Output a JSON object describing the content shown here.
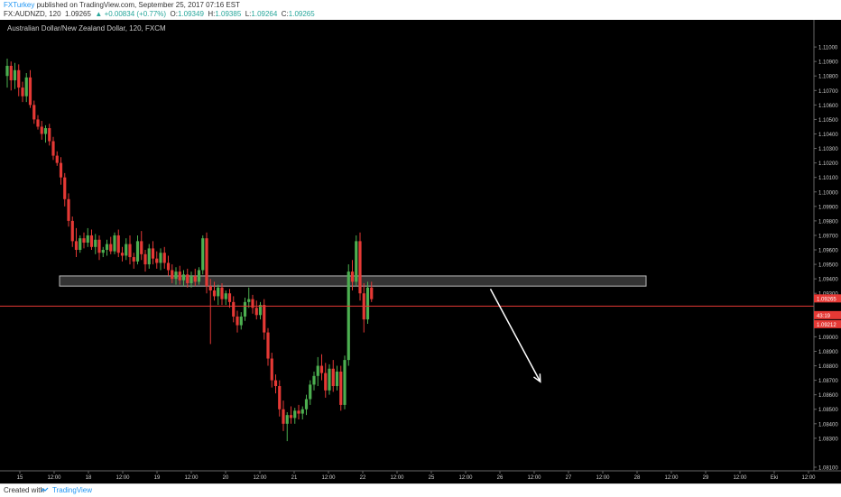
{
  "header": {
    "author": "FXTurkey",
    "published_text": "published on TradingView.com, September 25, 2017 07:16 EST",
    "symbol": "FX:AUDNZD, 120",
    "last": "1.09265",
    "change": "+0.00834 (+0.77%)",
    "o_label": "O:",
    "o_value": "1.09349",
    "h_label": "H:",
    "h_value": "1.09385",
    "l_label": "L:",
    "l_value": "1.09264",
    "c_label": "C:",
    "c_value": "1.09265"
  },
  "footer": {
    "created_with": "Created with",
    "brand": "TradingView"
  },
  "chart_data": {
    "type": "candlestick",
    "title": "Australian Dollar/New Zealand Dollar, 120, FXCM",
    "y_ticks": [
      "1.11000",
      "1.10900",
      "1.10800",
      "1.10700",
      "1.10600",
      "1.10500",
      "1.10400",
      "1.10300",
      "1.10200",
      "1.10100",
      "1.10000",
      "1.09900",
      "1.09800",
      "1.09700",
      "1.09600",
      "1.09500",
      "1.09400",
      "1.09300",
      "1.09100",
      "1.09000",
      "1.08900",
      "1.08800",
      "1.08700",
      "1.08600",
      "1.08500",
      "1.08400",
      "1.08300",
      "1.08100"
    ],
    "ylim": [
      1.081,
      1.1115
    ],
    "x_ticks": [
      "15",
      "12:00",
      "18",
      "12:00",
      "19",
      "12:00",
      "20",
      "12:00",
      "21",
      "12:00",
      "22",
      "12:00",
      "25",
      "12:00",
      "26",
      "12:00",
      "27",
      "12:00",
      "28",
      "12:00",
      "29",
      "12:00",
      "Eki",
      "12:00"
    ],
    "price_label": "1.09265",
    "countdown_label": "43:19",
    "line_label": "1.09212",
    "horizontal_line": 1.09212,
    "zone": {
      "low": 1.0935,
      "high": 1.0942
    },
    "colors": {
      "background": "#000000",
      "up": "#4caf50",
      "down": "#e53935",
      "line": "#e53935",
      "zone": "#444444",
      "text": "#cccccc",
      "arrow": "#ffffff"
    },
    "arrow": {
      "from_index": 126,
      "from_price": 1.0933,
      "to_index": 139,
      "to_price": 1.0869
    },
    "candles": [
      {
        "o": 1.108,
        "h": 1.1092,
        "l": 1.1072,
        "c": 1.1087
      },
      {
        "o": 1.1087,
        "h": 1.109,
        "l": 1.107,
        "c": 1.1077
      },
      {
        "o": 1.1077,
        "h": 1.1089,
        "l": 1.1071,
        "c": 1.1084
      },
      {
        "o": 1.1084,
        "h": 1.1088,
        "l": 1.1066,
        "c": 1.1072
      },
      {
        "o": 1.1072,
        "h": 1.1076,
        "l": 1.1062,
        "c": 1.1066
      },
      {
        "o": 1.1066,
        "h": 1.1082,
        "l": 1.1062,
        "c": 1.1079
      },
      {
        "o": 1.1079,
        "h": 1.1084,
        "l": 1.1058,
        "c": 1.106
      },
      {
        "o": 1.106,
        "h": 1.1063,
        "l": 1.1047,
        "c": 1.105
      },
      {
        "o": 1.105,
        "h": 1.1053,
        "l": 1.1043,
        "c": 1.1045
      },
      {
        "o": 1.1045,
        "h": 1.1049,
        "l": 1.1036,
        "c": 1.104
      },
      {
        "o": 1.104,
        "h": 1.1046,
        "l": 1.1034,
        "c": 1.1044
      },
      {
        "o": 1.1044,
        "h": 1.1047,
        "l": 1.1032,
        "c": 1.1035
      },
      {
        "o": 1.1035,
        "h": 1.1038,
        "l": 1.1022,
        "c": 1.1025
      },
      {
        "o": 1.1025,
        "h": 1.1028,
        "l": 1.1018,
        "c": 1.102
      },
      {
        "o": 1.102,
        "h": 1.1024,
        "l": 1.1005,
        "c": 1.101
      },
      {
        "o": 1.101,
        "h": 1.1013,
        "l": 1.099,
        "c": 1.0995
      },
      {
        "o": 1.0995,
        "h": 1.0999,
        "l": 1.0976,
        "c": 1.098
      },
      {
        "o": 1.098,
        "h": 1.0983,
        "l": 1.0962,
        "c": 1.0966
      },
      {
        "o": 1.0966,
        "h": 1.0975,
        "l": 1.0955,
        "c": 1.096
      },
      {
        "o": 1.096,
        "h": 1.097,
        "l": 1.0958,
        "c": 1.0968
      },
      {
        "o": 1.0968,
        "h": 1.0972,
        "l": 1.0961,
        "c": 1.0965
      },
      {
        "o": 1.0965,
        "h": 1.0975,
        "l": 1.0962,
        "c": 1.097
      },
      {
        "o": 1.097,
        "h": 1.0974,
        "l": 1.096,
        "c": 1.0962
      },
      {
        "o": 1.0962,
        "h": 1.0971,
        "l": 1.0957,
        "c": 1.0967
      },
      {
        "o": 1.0967,
        "h": 1.097,
        "l": 1.0953,
        "c": 1.0958
      },
      {
        "o": 1.0958,
        "h": 1.0962,
        "l": 1.0955,
        "c": 1.096
      },
      {
        "o": 1.096,
        "h": 1.0967,
        "l": 1.0956,
        "c": 1.0964
      },
      {
        "o": 1.0964,
        "h": 1.0969,
        "l": 1.0957,
        "c": 1.0959
      },
      {
        "o": 1.0959,
        "h": 1.0972,
        "l": 1.0957,
        "c": 1.097
      },
      {
        "o": 1.097,
        "h": 1.0974,
        "l": 1.0955,
        "c": 1.0958
      },
      {
        "o": 1.0958,
        "h": 1.0962,
        "l": 1.0952,
        "c": 1.0956
      },
      {
        "o": 1.0956,
        "h": 1.0968,
        "l": 1.0953,
        "c": 1.0964
      },
      {
        "o": 1.0964,
        "h": 1.097,
        "l": 1.095,
        "c": 1.0955
      },
      {
        "o": 1.0955,
        "h": 1.0958,
        "l": 1.0947,
        "c": 1.0952
      },
      {
        "o": 1.0952,
        "h": 1.097,
        "l": 1.095,
        "c": 1.0966
      },
      {
        "o": 1.0966,
        "h": 1.0973,
        "l": 1.0953,
        "c": 1.0957
      },
      {
        "o": 1.0957,
        "h": 1.096,
        "l": 1.0945,
        "c": 1.095
      },
      {
        "o": 1.095,
        "h": 1.0964,
        "l": 1.0947,
        "c": 1.0961
      },
      {
        "o": 1.0961,
        "h": 1.0966,
        "l": 1.095,
        "c": 1.0954
      },
      {
        "o": 1.0954,
        "h": 1.0959,
        "l": 1.0947,
        "c": 1.0951
      },
      {
        "o": 1.0951,
        "h": 1.0961,
        "l": 1.0946,
        "c": 1.0958
      },
      {
        "o": 1.0958,
        "h": 1.0962,
        "l": 1.0947,
        "c": 1.0951
      },
      {
        "o": 1.0951,
        "h": 1.0956,
        "l": 1.0942,
        "c": 1.0946
      },
      {
        "o": 1.0946,
        "h": 1.095,
        "l": 1.0937,
        "c": 1.094
      },
      {
        "o": 1.094,
        "h": 1.0948,
        "l": 1.0936,
        "c": 1.0945
      },
      {
        "o": 1.0945,
        "h": 1.0949,
        "l": 1.0936,
        "c": 1.0939
      },
      {
        "o": 1.0939,
        "h": 1.0946,
        "l": 1.0935,
        "c": 1.0943
      },
      {
        "o": 1.0943,
        "h": 1.0947,
        "l": 1.0934,
        "c": 1.0937
      },
      {
        "o": 1.0937,
        "h": 1.0945,
        "l": 1.0934,
        "c": 1.0942
      },
      {
        "o": 1.0942,
        "h": 1.0947,
        "l": 1.0935,
        "c": 1.0938
      },
      {
        "o": 1.0938,
        "h": 1.0948,
        "l": 1.0936,
        "c": 1.0946
      },
      {
        "o": 1.0946,
        "h": 1.097,
        "l": 1.0943,
        "c": 1.0968
      },
      {
        "o": 1.0968,
        "h": 1.0972,
        "l": 1.093,
        "c": 1.0935
      },
      {
        "o": 1.0935,
        "h": 1.094,
        "l": 1.0895,
        "c": 1.0932
      },
      {
        "o": 1.0932,
        "h": 1.0938,
        "l": 1.0925,
        "c": 1.0928
      },
      {
        "o": 1.0928,
        "h": 1.0936,
        "l": 1.0922,
        "c": 1.0934
      },
      {
        "o": 1.0934,
        "h": 1.0937,
        "l": 1.0922,
        "c": 1.0926
      },
      {
        "o": 1.0926,
        "h": 1.0932,
        "l": 1.0922,
        "c": 1.093
      },
      {
        "o": 1.093,
        "h": 1.0933,
        "l": 1.092,
        "c": 1.0924
      },
      {
        "o": 1.0924,
        "h": 1.0928,
        "l": 1.091,
        "c": 1.0914
      },
      {
        "o": 1.0914,
        "h": 1.0918,
        "l": 1.0903,
        "c": 1.0908
      },
      {
        "o": 1.0908,
        "h": 1.0917,
        "l": 1.0905,
        "c": 1.0914
      },
      {
        "o": 1.0914,
        "h": 1.0927,
        "l": 1.0911,
        "c": 1.0924
      },
      {
        "o": 1.0924,
        "h": 1.0934,
        "l": 1.092,
        "c": 1.0926
      },
      {
        "o": 1.0926,
        "h": 1.0929,
        "l": 1.0916,
        "c": 1.092
      },
      {
        "o": 1.092,
        "h": 1.0925,
        "l": 1.0912,
        "c": 1.0915
      },
      {
        "o": 1.0915,
        "h": 1.0924,
        "l": 1.0912,
        "c": 1.0922
      },
      {
        "o": 1.0922,
        "h": 1.0926,
        "l": 1.0898,
        "c": 1.0903
      },
      {
        "o": 1.0903,
        "h": 1.0906,
        "l": 1.088,
        "c": 1.0885
      },
      {
        "o": 1.0885,
        "h": 1.0889,
        "l": 1.0865,
        "c": 1.087
      },
      {
        "o": 1.087,
        "h": 1.0874,
        "l": 1.0861,
        "c": 1.0866
      },
      {
        "o": 1.0866,
        "h": 1.087,
        "l": 1.0845,
        "c": 1.085
      },
      {
        "o": 1.085,
        "h": 1.0856,
        "l": 1.0835,
        "c": 1.084
      },
      {
        "o": 1.084,
        "h": 1.0848,
        "l": 1.0828,
        "c": 1.0846
      },
      {
        "o": 1.0846,
        "h": 1.0852,
        "l": 1.084,
        "c": 1.0844
      },
      {
        "o": 1.0844,
        "h": 1.0851,
        "l": 1.084,
        "c": 1.0849
      },
      {
        "o": 1.0849,
        "h": 1.0853,
        "l": 1.0843,
        "c": 1.0847
      },
      {
        "o": 1.0847,
        "h": 1.0852,
        "l": 1.0843,
        "c": 1.085
      },
      {
        "o": 1.085,
        "h": 1.086,
        "l": 1.0846,
        "c": 1.0857
      },
      {
        "o": 1.0857,
        "h": 1.087,
        "l": 1.0853,
        "c": 1.0867
      },
      {
        "o": 1.0867,
        "h": 1.0876,
        "l": 1.0863,
        "c": 1.0873
      },
      {
        "o": 1.0873,
        "h": 1.0886,
        "l": 1.0866,
        "c": 1.088
      },
      {
        "o": 1.088,
        "h": 1.0888,
        "l": 1.087,
        "c": 1.0875
      },
      {
        "o": 1.0875,
        "h": 1.0882,
        "l": 1.0858,
        "c": 1.0863
      },
      {
        "o": 1.0863,
        "h": 1.0881,
        "l": 1.086,
        "c": 1.0878
      },
      {
        "o": 1.0878,
        "h": 1.0884,
        "l": 1.0862,
        "c": 1.0866
      },
      {
        "o": 1.0866,
        "h": 1.088,
        "l": 1.0863,
        "c": 1.0876
      },
      {
        "o": 1.0876,
        "h": 1.088,
        "l": 1.0849,
        "c": 1.0853
      },
      {
        "o": 1.0853,
        "h": 1.0887,
        "l": 1.085,
        "c": 1.0884
      },
      {
        "o": 1.0884,
        "h": 1.095,
        "l": 1.088,
        "c": 1.0945
      },
      {
        "o": 1.0945,
        "h": 1.0953,
        "l": 1.0932,
        "c": 1.0938
      },
      {
        "o": 1.0938,
        "h": 1.097,
        "l": 1.0935,
        "c": 1.0966
      },
      {
        "o": 1.0966,
        "h": 1.0972,
        "l": 1.0925,
        "c": 1.093
      },
      {
        "o": 1.093,
        "h": 1.0937,
        "l": 1.0903,
        "c": 1.0912
      },
      {
        "o": 1.0912,
        "h": 1.0938,
        "l": 1.0909,
        "c": 1.0934
      },
      {
        "o": 1.0934,
        "h": 1.0938,
        "l": 1.0924,
        "c": 1.0926
      }
    ]
  }
}
